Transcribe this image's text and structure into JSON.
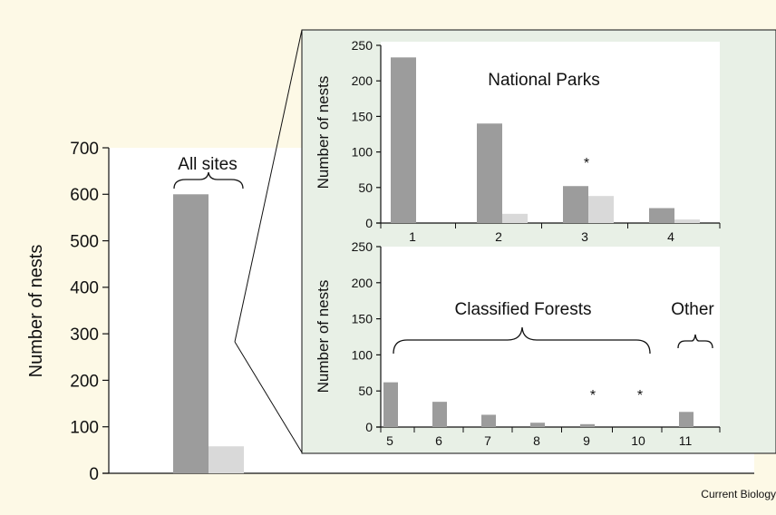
{
  "colors": {
    "background": "#fdf9e6",
    "main_plot_bg": "#ffffff",
    "inset_bg": "#e8f0e6",
    "bar_dark": "#9c9c9c",
    "bar_light": "#d9d9d9"
  },
  "credit": "Current Biology",
  "chart_data": [
    {
      "id": "all_sites",
      "type": "bar",
      "ylabel": "Number of nests",
      "ylim": [
        0,
        700
      ],
      "yticks": [
        0,
        100,
        200,
        300,
        400,
        500,
        600,
        700
      ],
      "annotation": "All sites",
      "series": [
        {
          "values": [
            600
          ]
        },
        {
          "values": [
            58
          ]
        }
      ],
      "grid": false
    },
    {
      "id": "national_parks",
      "type": "bar",
      "ylabel": "Number of nests",
      "ylim": [
        0,
        250
      ],
      "yticks": [
        0,
        50,
        100,
        150,
        200,
        250
      ],
      "categories": [
        "1",
        "2",
        "3",
        "4"
      ],
      "annotation": "National Parks",
      "significance_marker": {
        "symbol": "*",
        "categories": [
          "3"
        ]
      },
      "series": [
        {
          "values": [
            233,
            140,
            52,
            21
          ]
        },
        {
          "values": [
            0,
            13,
            38,
            5
          ]
        }
      ],
      "grid": false
    },
    {
      "id": "classified_forests",
      "type": "bar",
      "ylabel": "Number of nests",
      "ylim": [
        0,
        250
      ],
      "yticks": [
        0,
        50,
        100,
        150,
        200,
        250
      ],
      "categories": [
        "5",
        "6",
        "7",
        "8",
        "9",
        "10",
        "11"
      ],
      "group_labels": [
        "Classified Forests",
        "Other"
      ],
      "significance_marker": {
        "symbol": "*",
        "categories": [
          "9",
          "10"
        ]
      },
      "series": [
        {
          "values": [
            62,
            35,
            17,
            6,
            4,
            0,
            21
          ]
        }
      ],
      "grid": false
    }
  ]
}
